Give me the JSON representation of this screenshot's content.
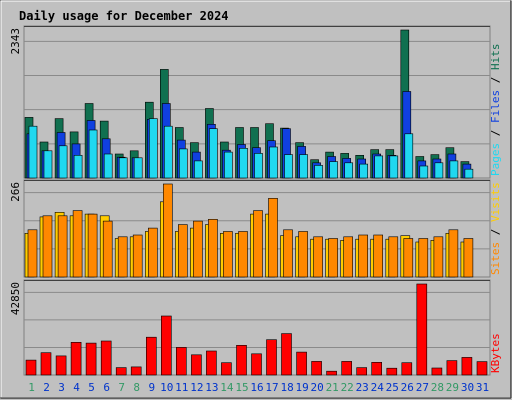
{
  "colors": {
    "background": "#c0c0c0",
    "plot_bg": "#c0c0c0",
    "grid": "#8a8a8a",
    "title": "#0033cc",
    "weekend_day": "#339966",
    "weekday_day": "#0033cc",
    "hits": "#107050",
    "files": "#1040e0",
    "pages": "#20d8f0",
    "visits": "#ffcc00",
    "sites": "#ff8800",
    "kbytes": "#ff0000"
  },
  "chart_data": {
    "type": "bar",
    "title": "Daily usage for December 2024",
    "days": [
      "1",
      "2",
      "3",
      "4",
      "5",
      "6",
      "7",
      "8",
      "9",
      "10",
      "11",
      "12",
      "13",
      "14",
      "15",
      "16",
      "17",
      "18",
      "19",
      "20",
      "21",
      "22",
      "23",
      "24",
      "25",
      "26",
      "27",
      "28",
      "29",
      "30",
      "31"
    ],
    "weekend_days": [
      "1",
      "7",
      "8",
      "14",
      "15",
      "21",
      "22",
      "28",
      "29"
    ],
    "panels": [
      {
        "name": "hits_files_pages",
        "ylabel_parts": [
          {
            "text": "Pages",
            "series": "pages"
          },
          {
            "text": " / ",
            "series": "separator"
          },
          {
            "text": "Files",
            "series": "files"
          },
          {
            "text": " / ",
            "series": "separator"
          },
          {
            "text": "Hits",
            "series": "hits"
          }
        ],
        "max_label": "2343",
        "ylim": [
          0,
          2343
        ],
        "series": [
          {
            "name": "Hits",
            "key": "hits",
            "values": [
              960,
              570,
              940,
              730,
              1180,
              900,
              380,
              430,
              1200,
              1720,
              800,
              560,
              1100,
              570,
              800,
              800,
              860,
              790,
              560,
              290,
              410,
              390,
              360,
              450,
              450,
              2343,
              340,
              370,
              480,
              260,
              0
            ]
          },
          {
            "name": "Files",
            "key": "files",
            "values": [
              700,
              430,
              720,
              540,
              910,
              620,
              330,
              320,
              930,
              1180,
              600,
              410,
              850,
              440,
              530,
              480,
              590,
              780,
              500,
              240,
              340,
              310,
              300,
              380,
              360,
              1370,
              270,
              300,
              380,
              220,
              0
            ]
          },
          {
            "name": "Pages",
            "key": "pages",
            "values": [
              820,
              430,
              510,
              360,
              760,
              380,
              320,
              320,
              940,
              820,
              460,
              270,
              780,
              410,
              470,
              390,
              490,
              370,
              370,
              200,
              260,
              240,
              220,
              350,
              350,
              700,
              190,
              240,
              270,
              140,
              0
            ]
          }
        ]
      },
      {
        "name": "visits_sites",
        "ylabel_parts": [
          {
            "text": "Sites",
            "series": "sites"
          },
          {
            "text": " / ",
            "series": "separator"
          },
          {
            "text": "Visits",
            "series": "visits"
          }
        ],
        "max_label": "266",
        "ylim": [
          0,
          266
        ],
        "series": [
          {
            "name": "Visits",
            "key": "visits",
            "values": [
              125,
              172,
              185,
              175,
              180,
              175,
              110,
              115,
              130,
              215,
              130,
              140,
              150,
              125,
              125,
              180,
              180,
              118,
              115,
              108,
              108,
              105,
              108,
              108,
              108,
              118,
              100,
              105,
              125,
              100,
              0
            ]
          },
          {
            "name": "Sites",
            "key": "sites",
            "values": [
              135,
              175,
              175,
              190,
              180,
              160,
              115,
              120,
              140,
              266,
              150,
              160,
              165,
              130,
              130,
              190,
              225,
              135,
              130,
              115,
              110,
              115,
              120,
              120,
              115,
              110,
              110,
              115,
              135,
              110,
              0
            ]
          }
        ]
      },
      {
        "name": "kbytes",
        "ylabel_parts": [
          {
            "text": "KBytes",
            "series": "kbytes"
          }
        ],
        "max_label": "42850",
        "ylim": [
          0,
          42850
        ],
        "series": [
          {
            "name": "KBytes",
            "key": "kbytes",
            "values": [
              7000,
              10500,
              9000,
              15400,
              15000,
              16000,
              3500,
              3800,
              17800,
              27800,
              13000,
              9500,
              11300,
              5800,
              14000,
              10000,
              16600,
              19500,
              10800,
              6400,
              1800,
              6400,
              3500,
              6000,
              3200,
              5800,
              42850,
              3300,
              6800,
              8300,
              6300
            ]
          }
        ]
      }
    ]
  }
}
